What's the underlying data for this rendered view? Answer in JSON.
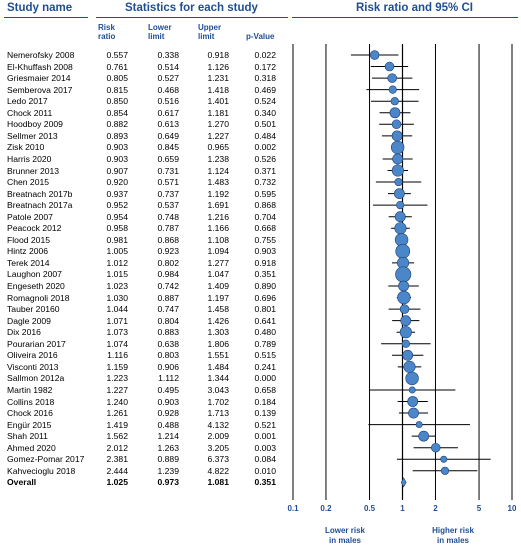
{
  "headers": {
    "study_name": "Study name",
    "statistics": "Statistics for each study",
    "plot_title": "Risk ratio and 95% CI",
    "risk_ratio": [
      "Risk",
      "ratio"
    ],
    "lower_limit": [
      "Lower",
      "limit"
    ],
    "upper_limit": [
      "Upper",
      "limit"
    ],
    "p_value": "p-Value"
  },
  "axis": {
    "ticks": [
      "0.1",
      "0.2",
      "0.5",
      "1",
      "2",
      "5",
      "10"
    ],
    "left_note": [
      "Lower risk",
      "in males"
    ],
    "right_note": [
      "Higher risk",
      "in males"
    ]
  },
  "colors": {
    "accent": "#1f4e96",
    "marker": "#4a86c8"
  },
  "chart_data": {
    "type": "forest",
    "scale": "log",
    "xlim": [
      0.1,
      10
    ],
    "reference_line": 1,
    "studies": [
      {
        "name": "Nemerofsky 2008",
        "rr": "0.557",
        "lower": "0.338",
        "upper": "0.918",
        "p": "0.022"
      },
      {
        "name": "El-Khuffash 2008",
        "rr": "0.761",
        "lower": "0.514",
        "upper": "1.126",
        "p": "0.172"
      },
      {
        "name": "Griesmaier 2014",
        "rr": "0.805",
        "lower": "0.527",
        "upper": "1.231",
        "p": "0.318"
      },
      {
        "name": "Semberova 2017",
        "rr": "0.815",
        "lower": "0.468",
        "upper": "1.418",
        "p": "0.469"
      },
      {
        "name": "Ledo 2017",
        "rr": "0.850",
        "lower": "0.516",
        "upper": "1.401",
        "p": "0.524"
      },
      {
        "name": "Chock 2011",
        "rr": "0.854",
        "lower": "0.617",
        "upper": "1.181",
        "p": "0.340"
      },
      {
        "name": "Hoodboy 2009",
        "rr": "0.882",
        "lower": "0.613",
        "upper": "1.270",
        "p": "0.501"
      },
      {
        "name": "Sellmer 2013",
        "rr": "0.893",
        "lower": "0.649",
        "upper": "1.227",
        "p": "0.484"
      },
      {
        "name": "Zisk 2010",
        "rr": "0.903",
        "lower": "0.845",
        "upper": "0.965",
        "p": "0.002"
      },
      {
        "name": "Harris 2020",
        "rr": "0.903",
        "lower": "0.659",
        "upper": "1.238",
        "p": "0.526"
      },
      {
        "name": "Brunner 2013",
        "rr": "0.907",
        "lower": "0.731",
        "upper": "1.124",
        "p": "0.371"
      },
      {
        "name": "Chen 2015",
        "rr": "0.920",
        "lower": "0.571",
        "upper": "1.483",
        "p": "0.732"
      },
      {
        "name": "Breatnach 2017b",
        "rr": "0.937",
        "lower": "0.737",
        "upper": "1.192",
        "p": "0.595"
      },
      {
        "name": "Breatnach 2017a",
        "rr": "0.952",
        "lower": "0.537",
        "upper": "1.691",
        "p": "0.868"
      },
      {
        "name": "Patole 2007",
        "rr": "0.954",
        "lower": "0.748",
        "upper": "1.216",
        "p": "0.704"
      },
      {
        "name": "Peacock 2012",
        "rr": "0.958",
        "lower": "0.787",
        "upper": "1.166",
        "p": "0.668"
      },
      {
        "name": "Flood 2015",
        "rr": "0.981",
        "lower": "0.868",
        "upper": "1.108",
        "p": "0.755"
      },
      {
        "name": "Hintz 2006",
        "rr": "1.005",
        "lower": "0.923",
        "upper": "1.094",
        "p": "0.903"
      },
      {
        "name": "Terek 2014",
        "rr": "1.012",
        "lower": "0.802",
        "upper": "1.277",
        "p": "0.918"
      },
      {
        "name": "Laughon 2007",
        "rr": "1.015",
        "lower": "0.984",
        "upper": "1.047",
        "p": "0.351"
      },
      {
        "name": "Engeseth 2020",
        "rr": "1.023",
        "lower": "0.742",
        "upper": "1.409",
        "p": "0.890"
      },
      {
        "name": "Romagnoli 2018",
        "rr": "1.030",
        "lower": "0.887",
        "upper": "1.197",
        "p": "0.696"
      },
      {
        "name": "Tauber 20160",
        "rr": "1.044",
        "lower": "0.747",
        "upper": "1.458",
        "p": "0.801"
      },
      {
        "name": "Dagle 2009",
        "rr": "1.071",
        "lower": "0.804",
        "upper": "1.426",
        "p": "0.641"
      },
      {
        "name": "Dix 2016",
        "rr": "1.073",
        "lower": "0.883",
        "upper": "1.303",
        "p": "0.480"
      },
      {
        "name": "Pourarian 2017",
        "rr": "1.074",
        "lower": "0.638",
        "upper": "1.806",
        "p": "0.789"
      },
      {
        "name": "Oliveira 2016",
        "rr": "1.116",
        "lower": "0.803",
        "upper": "1.551",
        "p": "0.515"
      },
      {
        "name": "Visconti 2013",
        "rr": "1.159",
        "lower": "0.906",
        "upper": "1.484",
        "p": "0.241"
      },
      {
        "name": "Sallmon 2012a",
        "rr": "1.223",
        "lower": "1.112",
        "upper": "1.344",
        "p": "0.000"
      },
      {
        "name": "Martin 1982",
        "rr": "1.227",
        "lower": "0.495",
        "upper": "3.043",
        "p": "0.658"
      },
      {
        "name": "Collins 2018",
        "rr": "1.240",
        "lower": "0.903",
        "upper": "1.702",
        "p": "0.184"
      },
      {
        "name": "Chock 2016",
        "rr": "1.261",
        "lper": "",
        "lower": "0.928",
        "upper": "1.713",
        "p": "0.139"
      },
      {
        "name": "Engür 2015",
        "rr": "1.419",
        "lower": "0.488",
        "upper": "4.132",
        "p": "0.521"
      },
      {
        "name": "Shah 2011",
        "rr": "1.562",
        "lower": "1.214",
        "upper": "2.009",
        "p": "0.001"
      },
      {
        "name": "Ahmed 2020",
        "rr": "2.012",
        "lower": "1.263",
        "upper": "3.205",
        "p": "0.003"
      },
      {
        "name": "Gomez-Pomar 2017",
        "rr": "2.381",
        "lower": "0.889",
        "upper": "6.373",
        "p": "0.084"
      },
      {
        "name": "Kahvecioglu 2018",
        "rr": "2.444",
        "lower": "1.239",
        "upper": "4.822",
        "p": "0.010"
      }
    ],
    "overall": {
      "name": "Overall",
      "rr": "1.025",
      "lower": "0.973",
      "upper": "1.081",
      "p": "0.351"
    },
    "marker_weights": [
      3,
      3,
      3,
      2,
      2,
      4,
      3,
      4,
      6,
      4,
      5,
      2,
      4,
      2,
      4,
      5,
      6,
      7,
      5,
      8,
      4,
      6,
      3,
      4,
      5,
      2,
      4,
      5,
      6,
      1,
      4,
      4,
      1,
      4,
      3,
      1,
      2
    ]
  }
}
